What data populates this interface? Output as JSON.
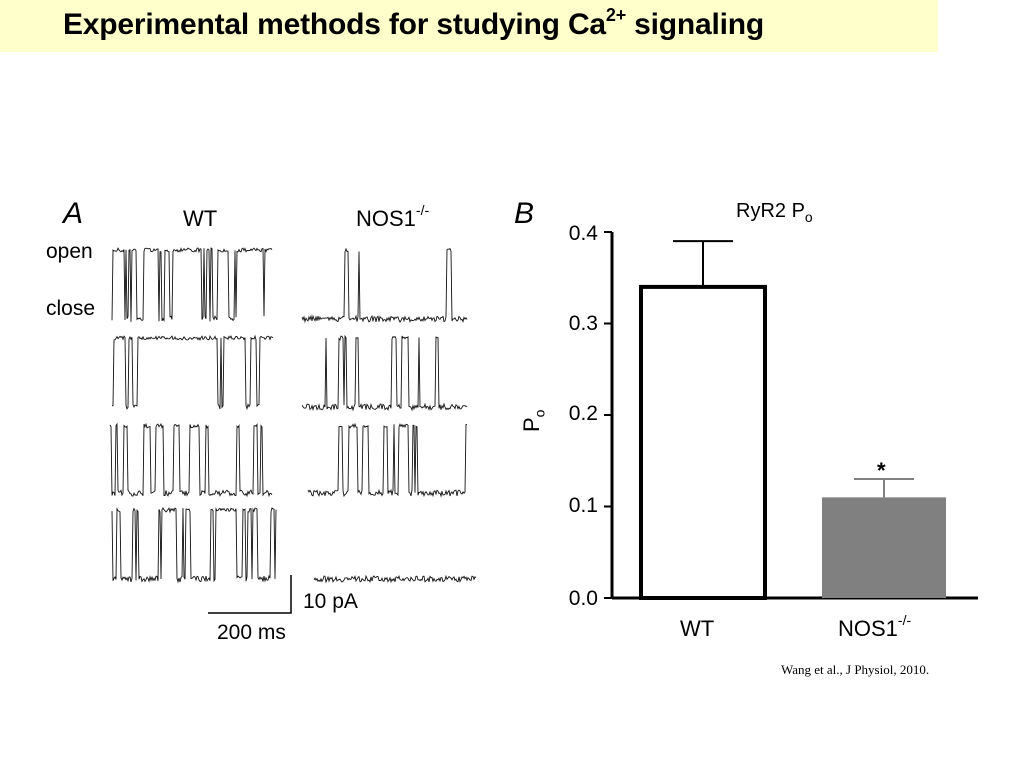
{
  "slide": {
    "title_main": "Experimental methods for studying Ca",
    "title_sup": "2+",
    "title_end": " signaling",
    "citation": "Wang et al., J  Physiol, 2010."
  },
  "panel_a": {
    "letter": "A",
    "wt_label": "WT",
    "nos_label": "NOS1",
    "nos_sup": "-/-",
    "open_label": "open",
    "close_label": "close",
    "scale_current": "10 pA",
    "scale_time": "200 ms"
  },
  "panel_b": {
    "letter": "B",
    "title_main": "RyR2 P",
    "title_sub": "o",
    "ylabel_main": "P",
    "ylabel_sub": "o",
    "yticks": [
      "0.0",
      "0.1",
      "0.2",
      "0.3",
      "0.4"
    ],
    "x1_label": "WT",
    "x2_label": "NOS1",
    "x2_sup": "-/-",
    "significance": "*"
  },
  "chart_data": {
    "type": "bar",
    "title": "RyR2 Po",
    "categories": [
      "WT",
      "NOS1-/-"
    ],
    "values": [
      0.34,
      0.11
    ],
    "errors": [
      0.05,
      0.02
    ],
    "ylabel": "Po",
    "ylim": [
      0,
      0.4
    ],
    "colors": [
      "#ffffff",
      "#808080"
    ],
    "significance": [
      "",
      "*"
    ]
  }
}
